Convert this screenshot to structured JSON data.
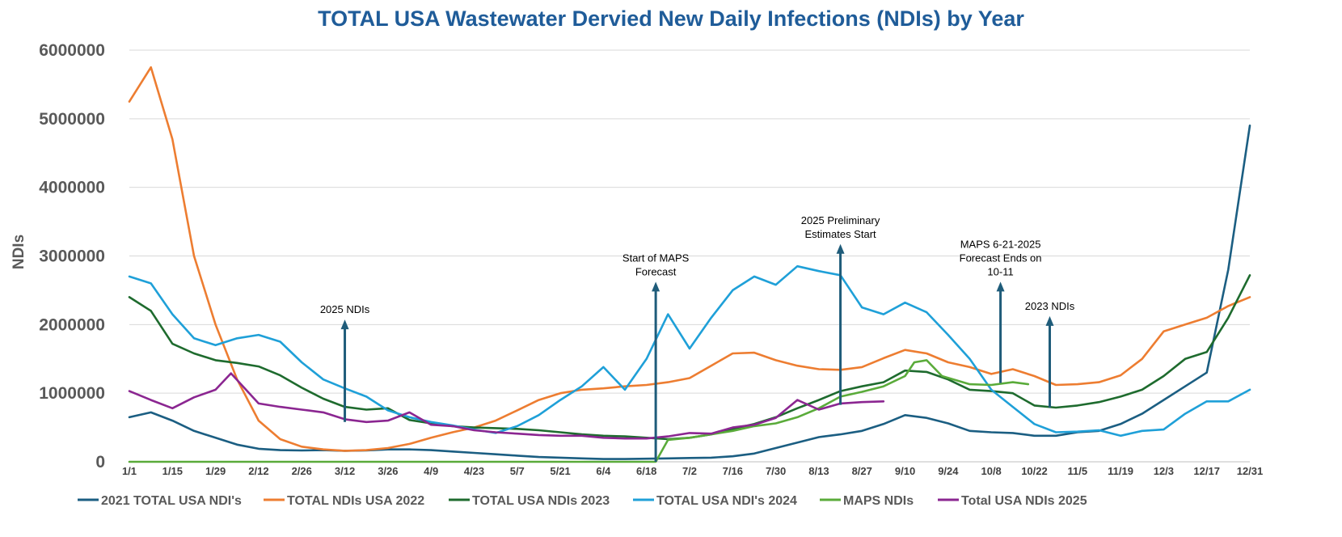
{
  "chart_data": {
    "type": "line",
    "title": "TOTAL USA Wastewater Dervied New Daily Infections (NDIs) by Year",
    "ylabel": "NDIs",
    "xlabel": "",
    "xlim": [
      1,
      365
    ],
    "ylim": [
      0,
      6000000
    ],
    "grid": "horizontal",
    "legend_position": "bottom",
    "yticks": [
      0,
      1000000,
      2000000,
      3000000,
      4000000,
      5000000,
      6000000
    ],
    "ytick_labels": [
      "0",
      "1000000",
      "2000000",
      "3000000",
      "4000000",
      "5000000",
      "6000000"
    ],
    "xticks": [
      1,
      15,
      29,
      43,
      57,
      71,
      85,
      99,
      113,
      127,
      141,
      155,
      169,
      183,
      197,
      211,
      225,
      239,
      253,
      267,
      281,
      295,
      309,
      323,
      337,
      351,
      365
    ],
    "xtick_labels": [
      "1/1",
      "1/15",
      "1/29",
      "2/12",
      "2/26",
      "3/12",
      "3/26",
      "4/9",
      "4/23",
      "5/7",
      "5/21",
      "6/4",
      "6/18",
      "7/2",
      "7/16",
      "7/30",
      "8/13",
      "8/27",
      "9/10",
      "9/24",
      "10/8",
      "10/22",
      "11/5",
      "11/19",
      "12/3",
      "12/17",
      "12/31"
    ],
    "series": [
      {
        "name": "2021 TOTAL USA NDI's",
        "color": "#1b5e82",
        "points": [
          [
            1,
            650000
          ],
          [
            8,
            720000
          ],
          [
            15,
            600000
          ],
          [
            22,
            450000
          ],
          [
            29,
            350000
          ],
          [
            36,
            250000
          ],
          [
            43,
            190000
          ],
          [
            50,
            170000
          ],
          [
            57,
            165000
          ],
          [
            64,
            170000
          ],
          [
            71,
            160000
          ],
          [
            78,
            165000
          ],
          [
            85,
            180000
          ],
          [
            92,
            180000
          ],
          [
            99,
            170000
          ],
          [
            106,
            150000
          ],
          [
            113,
            130000
          ],
          [
            120,
            110000
          ],
          [
            127,
            90000
          ],
          [
            134,
            70000
          ],
          [
            141,
            60000
          ],
          [
            148,
            50000
          ],
          [
            155,
            40000
          ],
          [
            162,
            40000
          ],
          [
            169,
            45000
          ],
          [
            176,
            50000
          ],
          [
            183,
            55000
          ],
          [
            190,
            60000
          ],
          [
            197,
            80000
          ],
          [
            204,
            120000
          ],
          [
            211,
            200000
          ],
          [
            218,
            280000
          ],
          [
            225,
            360000
          ],
          [
            232,
            400000
          ],
          [
            239,
            450000
          ],
          [
            246,
            550000
          ],
          [
            253,
            680000
          ],
          [
            260,
            640000
          ],
          [
            267,
            560000
          ],
          [
            274,
            450000
          ],
          [
            281,
            430000
          ],
          [
            288,
            420000
          ],
          [
            295,
            380000
          ],
          [
            302,
            380000
          ],
          [
            309,
            430000
          ],
          [
            316,
            450000
          ],
          [
            323,
            550000
          ],
          [
            330,
            700000
          ],
          [
            337,
            900000
          ],
          [
            344,
            1100000
          ],
          [
            351,
            1300000
          ],
          [
            358,
            2800000
          ],
          [
            365,
            4900000
          ]
        ]
      },
      {
        "name": "TOTAL NDIs USA 2022",
        "color": "#ed7d31",
        "points": [
          [
            1,
            5250000
          ],
          [
            8,
            5750000
          ],
          [
            15,
            4700000
          ],
          [
            22,
            3000000
          ],
          [
            29,
            2000000
          ],
          [
            36,
            1200000
          ],
          [
            43,
            600000
          ],
          [
            50,
            330000
          ],
          [
            57,
            220000
          ],
          [
            64,
            180000
          ],
          [
            71,
            160000
          ],
          [
            78,
            170000
          ],
          [
            85,
            200000
          ],
          [
            92,
            260000
          ],
          [
            99,
            350000
          ],
          [
            106,
            430000
          ],
          [
            113,
            500000
          ],
          [
            120,
            600000
          ],
          [
            127,
            750000
          ],
          [
            134,
            900000
          ],
          [
            141,
            1000000
          ],
          [
            148,
            1050000
          ],
          [
            155,
            1070000
          ],
          [
            162,
            1100000
          ],
          [
            169,
            1120000
          ],
          [
            176,
            1160000
          ],
          [
            183,
            1220000
          ],
          [
            190,
            1400000
          ],
          [
            197,
            1580000
          ],
          [
            204,
            1590000
          ],
          [
            211,
            1480000
          ],
          [
            218,
            1400000
          ],
          [
            225,
            1350000
          ],
          [
            232,
            1340000
          ],
          [
            239,
            1380000
          ],
          [
            246,
            1510000
          ],
          [
            253,
            1630000
          ],
          [
            260,
            1580000
          ],
          [
            267,
            1450000
          ],
          [
            274,
            1380000
          ],
          [
            281,
            1280000
          ],
          [
            288,
            1350000
          ],
          [
            295,
            1250000
          ],
          [
            302,
            1120000
          ],
          [
            309,
            1130000
          ],
          [
            316,
            1160000
          ],
          [
            323,
            1260000
          ],
          [
            330,
            1500000
          ],
          [
            337,
            1900000
          ],
          [
            344,
            2000000
          ],
          [
            351,
            2100000
          ],
          [
            358,
            2270000
          ],
          [
            365,
            2400000
          ]
        ]
      },
      {
        "name": "TOTAL USA NDIs 2023",
        "color": "#1e6b2e",
        "points": [
          [
            1,
            2400000
          ],
          [
            8,
            2200000
          ],
          [
            15,
            1720000
          ],
          [
            22,
            1580000
          ],
          [
            29,
            1480000
          ],
          [
            36,
            1440000
          ],
          [
            43,
            1390000
          ],
          [
            50,
            1260000
          ],
          [
            57,
            1080000
          ],
          [
            64,
            920000
          ],
          [
            71,
            800000
          ],
          [
            78,
            760000
          ],
          [
            85,
            780000
          ],
          [
            92,
            610000
          ],
          [
            99,
            560000
          ],
          [
            106,
            520000
          ],
          [
            113,
            500000
          ],
          [
            120,
            490000
          ],
          [
            127,
            480000
          ],
          [
            134,
            460000
          ],
          [
            141,
            430000
          ],
          [
            148,
            400000
          ],
          [
            155,
            380000
          ],
          [
            162,
            370000
          ],
          [
            169,
            350000
          ],
          [
            176,
            330000
          ],
          [
            183,
            350000
          ],
          [
            190,
            400000
          ],
          [
            197,
            480000
          ],
          [
            204,
            550000
          ],
          [
            211,
            650000
          ],
          [
            218,
            780000
          ],
          [
            225,
            900000
          ],
          [
            232,
            1030000
          ],
          [
            239,
            1100000
          ],
          [
            246,
            1160000
          ],
          [
            253,
            1330000
          ],
          [
            260,
            1310000
          ],
          [
            267,
            1200000
          ],
          [
            274,
            1050000
          ],
          [
            281,
            1030000
          ],
          [
            288,
            1000000
          ],
          [
            295,
            820000
          ],
          [
            302,
            790000
          ],
          [
            309,
            820000
          ],
          [
            316,
            870000
          ],
          [
            323,
            950000
          ],
          [
            330,
            1050000
          ],
          [
            337,
            1250000
          ],
          [
            344,
            1500000
          ],
          [
            351,
            1600000
          ],
          [
            358,
            2100000
          ],
          [
            365,
            2720000
          ]
        ]
      },
      {
        "name": "TOTAL USA NDI's 2024",
        "color": "#1fa0d8",
        "points": [
          [
            1,
            2700000
          ],
          [
            8,
            2600000
          ],
          [
            15,
            2150000
          ],
          [
            22,
            1800000
          ],
          [
            29,
            1700000
          ],
          [
            36,
            1800000
          ],
          [
            43,
            1850000
          ],
          [
            50,
            1750000
          ],
          [
            57,
            1450000
          ],
          [
            64,
            1200000
          ],
          [
            71,
            1070000
          ],
          [
            78,
            950000
          ],
          [
            85,
            750000
          ],
          [
            92,
            650000
          ],
          [
            99,
            580000
          ],
          [
            106,
            530000
          ],
          [
            113,
            470000
          ],
          [
            120,
            420000
          ],
          [
            127,
            520000
          ],
          [
            134,
            680000
          ],
          [
            141,
            900000
          ],
          [
            148,
            1100000
          ],
          [
            155,
            1380000
          ],
          [
            162,
            1050000
          ],
          [
            169,
            1500000
          ],
          [
            176,
            2150000
          ],
          [
            183,
            1650000
          ],
          [
            190,
            2100000
          ],
          [
            197,
            2500000
          ],
          [
            204,
            2700000
          ],
          [
            211,
            2580000
          ],
          [
            218,
            2850000
          ],
          [
            225,
            2780000
          ],
          [
            232,
            2720000
          ],
          [
            239,
            2250000
          ],
          [
            246,
            2150000
          ],
          [
            253,
            2320000
          ],
          [
            260,
            2180000
          ],
          [
            267,
            1850000
          ],
          [
            274,
            1500000
          ],
          [
            281,
            1050000
          ],
          [
            288,
            800000
          ],
          [
            295,
            550000
          ],
          [
            302,
            430000
          ],
          [
            309,
            440000
          ],
          [
            316,
            460000
          ],
          [
            323,
            380000
          ],
          [
            330,
            450000
          ],
          [
            337,
            470000
          ],
          [
            344,
            700000
          ],
          [
            351,
            880000
          ],
          [
            358,
            880000
          ],
          [
            365,
            1050000
          ]
        ]
      },
      {
        "name": "MAPS NDIs",
        "color": "#5aab3a",
        "points": [
          [
            1,
            0
          ],
          [
            169,
            0
          ],
          [
            172,
            0
          ],
          [
            176,
            320000
          ],
          [
            183,
            350000
          ],
          [
            190,
            400000
          ],
          [
            197,
            450000
          ],
          [
            204,
            520000
          ],
          [
            211,
            560000
          ],
          [
            218,
            650000
          ],
          [
            225,
            780000
          ],
          [
            232,
            950000
          ],
          [
            239,
            1020000
          ],
          [
            246,
            1100000
          ],
          [
            253,
            1250000
          ],
          [
            256,
            1450000
          ],
          [
            260,
            1480000
          ],
          [
            265,
            1250000
          ],
          [
            274,
            1130000
          ],
          [
            281,
            1120000
          ],
          [
            288,
            1160000
          ],
          [
            293,
            1130000
          ]
        ]
      },
      {
        "name": "Total USA NDIs 2025",
        "color": "#8b2691",
        "points": [
          [
            1,
            1030000
          ],
          [
            8,
            900000
          ],
          [
            15,
            780000
          ],
          [
            22,
            940000
          ],
          [
            29,
            1050000
          ],
          [
            34,
            1290000
          ],
          [
            43,
            850000
          ],
          [
            50,
            800000
          ],
          [
            57,
            760000
          ],
          [
            64,
            720000
          ],
          [
            71,
            620000
          ],
          [
            78,
            580000
          ],
          [
            85,
            600000
          ],
          [
            92,
            720000
          ],
          [
            99,
            540000
          ],
          [
            106,
            520000
          ],
          [
            113,
            460000
          ],
          [
            120,
            430000
          ],
          [
            127,
            410000
          ],
          [
            134,
            390000
          ],
          [
            141,
            380000
          ],
          [
            148,
            380000
          ],
          [
            155,
            350000
          ],
          [
            162,
            340000
          ],
          [
            169,
            340000
          ],
          [
            176,
            370000
          ],
          [
            183,
            420000
          ],
          [
            190,
            410000
          ],
          [
            197,
            500000
          ],
          [
            204,
            540000
          ],
          [
            211,
            640000
          ],
          [
            218,
            900000
          ],
          [
            225,
            760000
          ],
          [
            232,
            850000
          ],
          [
            239,
            870000
          ],
          [
            246,
            880000
          ]
        ]
      }
    ],
    "annotations": [
      {
        "lines": [
          "2025 NDIs"
        ],
        "x": 71,
        "arrow_from": 580000,
        "arrow_to": 2050000
      },
      {
        "lines": [
          "Start of MAPS",
          "Forecast"
        ],
        "x": 172,
        "arrow_from": 0,
        "arrow_to": 2600000
      },
      {
        "lines": [
          "2025 Preliminary",
          "Estimates Start"
        ],
        "x": 232,
        "arrow_from": 830000,
        "arrow_to": 3150000
      },
      {
        "lines": [
          "MAPS 6-21-2025",
          "Forecast Ends  on",
          "10-11"
        ],
        "x": 284,
        "arrow_from": 1150000,
        "arrow_to": 2600000
      },
      {
        "lines": [
          "2023 NDIs"
        ],
        "x": 300,
        "arrow_from": 790000,
        "arrow_to": 2100000
      }
    ]
  }
}
